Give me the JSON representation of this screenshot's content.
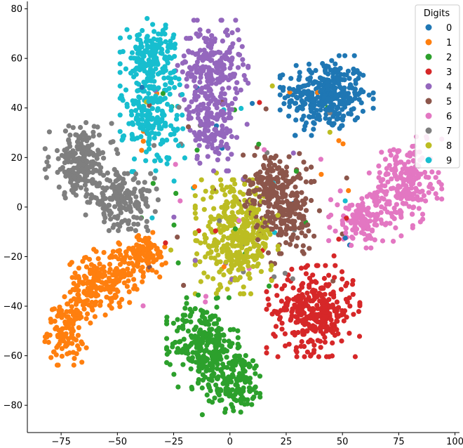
{
  "chart_data": {
    "type": "scatter",
    "title": "",
    "xlabel": "",
    "ylabel": "",
    "xlim": [
      -90,
      102
    ],
    "ylim": [
      -91,
      83
    ],
    "x_ticks": [
      -75,
      -50,
      -25,
      0,
      25,
      50,
      75,
      100
    ],
    "y_ticks": [
      -80,
      -60,
      -40,
      -20,
      0,
      20,
      40,
      60,
      80
    ],
    "grid": false,
    "legend": {
      "title": "Digits",
      "position": "top-right"
    },
    "series": [
      {
        "name": "0",
        "color": "#1f77b4",
        "clusters": [
          {
            "cx": 43,
            "cy": 45,
            "sx": 9,
            "sy": 7,
            "n": 340
          }
        ]
      },
      {
        "name": "1",
        "color": "#ff7f0e",
        "clusters": [
          {
            "cx": -73,
            "cy": -50,
            "sx": 4,
            "sy": 6,
            "n": 120
          },
          {
            "cx": -62,
            "cy": -33,
            "sx": 5,
            "sy": 6,
            "n": 110
          },
          {
            "cx": -50,
            "cy": -27,
            "sx": 5,
            "sy": 6,
            "n": 110
          },
          {
            "cx": -38,
            "cy": -19,
            "sx": 5,
            "sy": 4,
            "n": 90
          }
        ]
      },
      {
        "name": "2",
        "color": "#2ca02c",
        "clusters": [
          {
            "cx": -12,
            "cy": -55,
            "sx": 7,
            "sy": 8,
            "n": 240
          },
          {
            "cx": 2,
            "cy": -70,
            "sx": 7,
            "sy": 6,
            "n": 170
          }
        ]
      },
      {
        "name": "3",
        "color": "#d62728",
        "clusters": [
          {
            "cx": 37,
            "cy": -42,
            "sx": 9,
            "sy": 8,
            "n": 330
          }
        ]
      },
      {
        "name": "4",
        "color": "#9467bd",
        "clusters": [
          {
            "cx": -8,
            "cy": 57,
            "sx": 7,
            "sy": 8,
            "n": 220
          },
          {
            "cx": -8,
            "cy": 33,
            "sx": 5,
            "sy": 8,
            "n": 150
          }
        ]
      },
      {
        "name": "5",
        "color": "#8c564b",
        "clusters": [
          {
            "cx": 20,
            "cy": 8,
            "sx": 7,
            "sy": 7,
            "n": 190
          },
          {
            "cx": 26,
            "cy": -5,
            "sx": 6,
            "sy": 6,
            "n": 120
          }
        ]
      },
      {
        "name": "6",
        "color": "#e377c2",
        "clusters": [
          {
            "cx": 78,
            "cy": 10,
            "sx": 7,
            "sy": 8,
            "n": 200
          },
          {
            "cx": 60,
            "cy": -5,
            "sx": 7,
            "sy": 5,
            "n": 140
          }
        ]
      },
      {
        "name": "7",
        "color": "#7f7f7f",
        "clusters": [
          {
            "cx": -66,
            "cy": 18,
            "sx": 7,
            "sy": 7,
            "n": 220
          },
          {
            "cx": -48,
            "cy": 2,
            "sx": 7,
            "sy": 5,
            "n": 170
          }
        ]
      },
      {
        "name": "8",
        "color": "#bcbd22",
        "clusters": [
          {
            "cx": 3,
            "cy": -12,
            "sx": 8,
            "sy": 10,
            "n": 360
          }
        ]
      },
      {
        "name": "9",
        "color": "#17becf",
        "clusters": [
          {
            "cx": -35,
            "cy": 60,
            "sx": 6,
            "sy": 7,
            "n": 190
          },
          {
            "cx": -35,
            "cy": 35,
            "sx": 6,
            "sy": 9,
            "n": 170
          }
        ]
      }
    ]
  }
}
